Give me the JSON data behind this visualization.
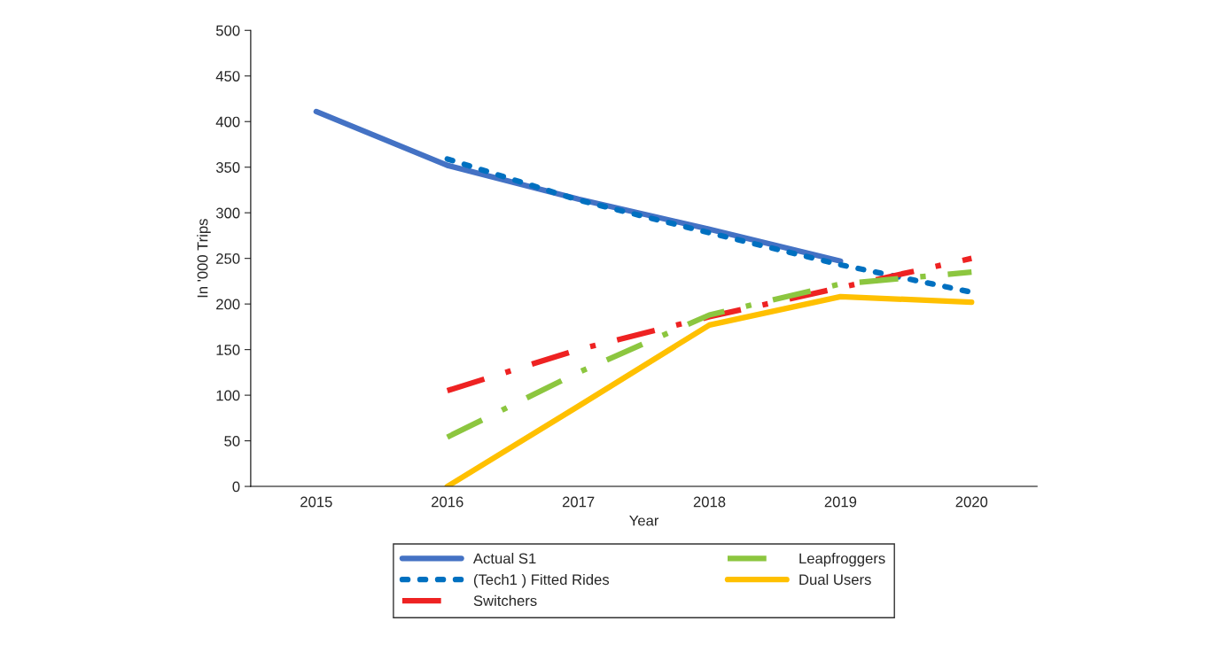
{
  "chart_data": {
    "type": "line",
    "xlabel": "Year",
    "ylabel": "In '000 Trips",
    "categories": [
      "2015",
      "2016",
      "2017",
      "2018",
      "2019",
      "2020"
    ],
    "ylim": [
      0,
      500
    ],
    "yticks": [
      0,
      50,
      100,
      150,
      200,
      250,
      300,
      350,
      400,
      450,
      500
    ],
    "grid": false,
    "legend": "bottom",
    "series": [
      {
        "name": "Actual S1",
        "color": "#4472c4",
        "line_style": "solid",
        "values": [
          411,
          352,
          315,
          282,
          247,
          null
        ]
      },
      {
        "name": "(Tech1 ) Fitted Rides",
        "color": "#0070c0",
        "line_style": "dotted",
        "values": [
          null,
          359,
          314,
          278,
          243,
          213
        ]
      },
      {
        "name": "Switchers",
        "color": "#ee2222",
        "line_style": "dashdot",
        "values": [
          null,
          105,
          150,
          186,
          218,
          250
        ]
      },
      {
        "name": "Leapfroggers",
        "color": "#8cc63f",
        "line_style": "dashdot",
        "values": [
          null,
          54,
          125,
          188,
          222,
          235
        ]
      },
      {
        "name": "Dual Users",
        "color": "#ffc000",
        "line_style": "solid",
        "values": [
          null,
          0,
          88,
          177,
          208,
          202
        ]
      }
    ]
  }
}
